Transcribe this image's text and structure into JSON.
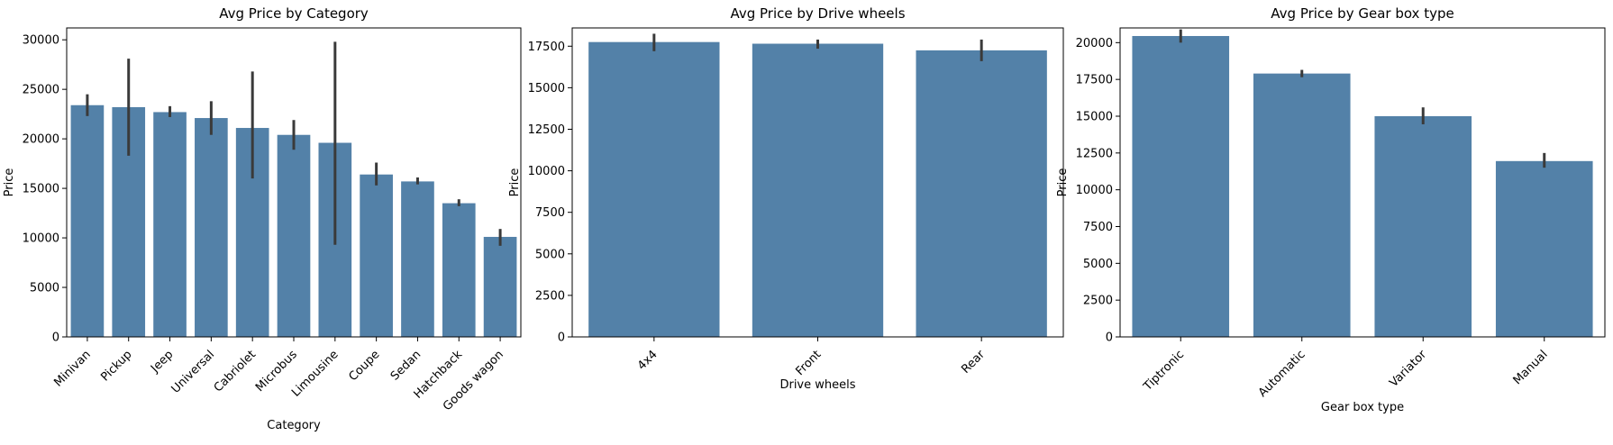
{
  "chart_data": [
    {
      "type": "bar",
      "title": "Avg Price by Category",
      "xlabel": "Category",
      "ylabel": "Price",
      "ylim": [
        0,
        31200
      ],
      "yticks": [
        0,
        5000,
        10000,
        15000,
        20000,
        25000,
        30000
      ],
      "categories": [
        "Minivan",
        "Pickup",
        "Jeep",
        "Universal",
        "Cabriolet",
        "Microbus",
        "Limousine",
        "Coupe",
        "Sedan",
        "Hatchback",
        "Goods wagon"
      ],
      "values": [
        23400,
        23200,
        22700,
        22100,
        21100,
        20400,
        19600,
        16400,
        15700,
        13500,
        10100
      ],
      "error_low": [
        22300,
        18300,
        22200,
        20400,
        16000,
        18900,
        9300,
        15300,
        15400,
        13200,
        9200
      ],
      "error_high": [
        24500,
        28100,
        23300,
        23800,
        26800,
        21900,
        29800,
        17600,
        16100,
        13900,
        10900
      ],
      "bar_color": "#5381a8",
      "error_color": "#3a3a3a",
      "grid": false
    },
    {
      "type": "bar",
      "title": "Avg Price by Drive wheels",
      "xlabel": "Drive wheels",
      "ylabel": "Price",
      "ylim": [
        0,
        18600
      ],
      "yticks": [
        0,
        2500,
        5000,
        7500,
        10000,
        12500,
        15000,
        17500
      ],
      "categories": [
        "4x4",
        "Front",
        "Rear"
      ],
      "values": [
        17750,
        17650,
        17250
      ],
      "error_low": [
        17200,
        17350,
        16600
      ],
      "error_high": [
        18250,
        17900,
        17900
      ],
      "bar_color": "#5381a8",
      "error_color": "#3a3a3a",
      "grid": false
    },
    {
      "type": "bar",
      "title": "Avg Price by Gear box type",
      "xlabel": "Gear box type",
      "ylabel": "Price",
      "ylim": [
        0,
        21000
      ],
      "yticks": [
        0,
        2500,
        5000,
        7500,
        10000,
        12500,
        15000,
        17500,
        20000
      ],
      "categories": [
        "Tiptronic",
        "Automatic",
        "Variator",
        "Manual"
      ],
      "values": [
        20450,
        17900,
        15000,
        11950
      ],
      "error_low": [
        20000,
        17650,
        14450,
        11500
      ],
      "error_high": [
        20900,
        18150,
        15600,
        12500
      ],
      "bar_color": "#5381a8",
      "error_color": "#3a3a3a",
      "grid": false
    }
  ]
}
